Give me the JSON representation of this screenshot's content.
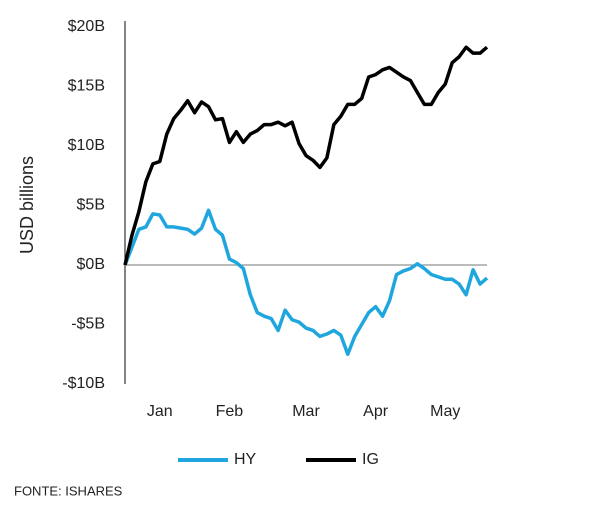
{
  "chart_data": {
    "type": "line",
    "y_label": "USD billions",
    "source": "FONTE: ISHARES",
    "categories": [
      null,
      null,
      null,
      null,
      null,
      "Jan",
      null,
      null,
      null,
      null,
      null,
      null,
      null,
      null,
      null,
      "Feb",
      null,
      null,
      null,
      null,
      null,
      null,
      null,
      null,
      null,
      null,
      "Mar",
      null,
      null,
      null,
      null,
      null,
      null,
      null,
      null,
      null,
      "Apr",
      null,
      null,
      null,
      null,
      null,
      null,
      null,
      null,
      null,
      "May",
      null,
      null,
      null,
      null,
      null,
      null
    ],
    "series": [
      {
        "name": "HY",
        "color": "#1fa6de",
        "values": [
          0,
          1.5,
          3,
          3.2,
          4.3,
          4.2,
          3.2,
          3.2,
          3.1,
          3,
          2.6,
          3.1,
          4.6,
          3,
          2.5,
          0.5,
          0.2,
          -0.3,
          -2.5,
          -4,
          -4.3,
          -4.5,
          -5.5,
          -3.8,
          -4.6,
          -4.8,
          -5.3,
          -5.5,
          -6,
          -5.8,
          -5.5,
          -5.9,
          -7.5,
          -6,
          -5,
          -4,
          -3.5,
          -4.3,
          -3,
          -0.8,
          -0.5,
          -0.3,
          0.1,
          -0.3,
          -0.8,
          -1,
          -1.2,
          -1.2,
          -1.6,
          -2.5,
          -0.4,
          -1.6,
          -1.1
        ]
      },
      {
        "name": "IG",
        "color": "#000000",
        "values": [
          0,
          2.5,
          4.5,
          7,
          8.5,
          8.7,
          11,
          12.3,
          13,
          13.8,
          12.8,
          13.7,
          13.3,
          12.2,
          12.3,
          10.3,
          11.2,
          10.3,
          11,
          11.3,
          11.8,
          11.8,
          12,
          11.7,
          12,
          10.2,
          9.2,
          8.8,
          8.2,
          9,
          11.8,
          12.5,
          13.5,
          13.5,
          14,
          15.8,
          16,
          16.4,
          16.6,
          16.2,
          15.8,
          15.5,
          14.5,
          13.5,
          13.5,
          14.5,
          15.2,
          17,
          17.5,
          18.3,
          17.8,
          17.8,
          18.3
        ]
      }
    ],
    "ylim": [
      -10,
      20
    ],
    "yticks": [
      {
        "value": 20,
        "label": "$20B"
      },
      {
        "value": 15,
        "label": "$15B"
      },
      {
        "value": 10,
        "label": "$10B"
      },
      {
        "value": 5,
        "label": "$5B"
      },
      {
        "value": 0,
        "label": "$0B"
      },
      {
        "value": -5,
        "label": "-$5B"
      },
      {
        "value": -10,
        "label": "-$10B"
      }
    ],
    "zero_line": true
  }
}
